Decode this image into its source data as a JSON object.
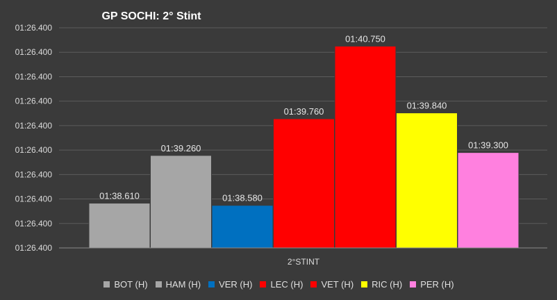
{
  "chart_data": {
    "type": "bar",
    "title": "GP SOCHI: 2° Stint",
    "categories": [
      "2°STINT"
    ],
    "ytick_labels": [
      "01:26.400",
      "01:26.400",
      "01:26.400",
      "01:26.400",
      "01:26.400",
      "01:26.400",
      "01:26.400",
      "01:26.400",
      "01:26.400",
      "01:26.400"
    ],
    "ylim": [
      98.0,
      101.0
    ],
    "grid": true,
    "legend_position": "bottom",
    "series": [
      {
        "name": "BOT (H)",
        "value": 98.61,
        "label": "01:38.610",
        "color": "#a6a6a6"
      },
      {
        "name": "HAM (H)",
        "value": 99.26,
        "label": "01:39.260",
        "color": "#a6a6a6"
      },
      {
        "name": "VER (H)",
        "value": 98.58,
        "label": "01:38.580",
        "color": "#0070c0"
      },
      {
        "name": "LEC (H)",
        "value": 99.76,
        "label": "01:39.760",
        "color": "#ff0000"
      },
      {
        "name": "VET (H)",
        "value": 100.75,
        "label": "01:40.750",
        "color": "#ff0000"
      },
      {
        "name": "RIC (H)",
        "value": 99.84,
        "label": "01:39.840",
        "color": "#ffff00"
      },
      {
        "name": "PER (H)",
        "value": 99.3,
        "label": "01:39.300",
        "color": "#ff80df"
      }
    ]
  }
}
